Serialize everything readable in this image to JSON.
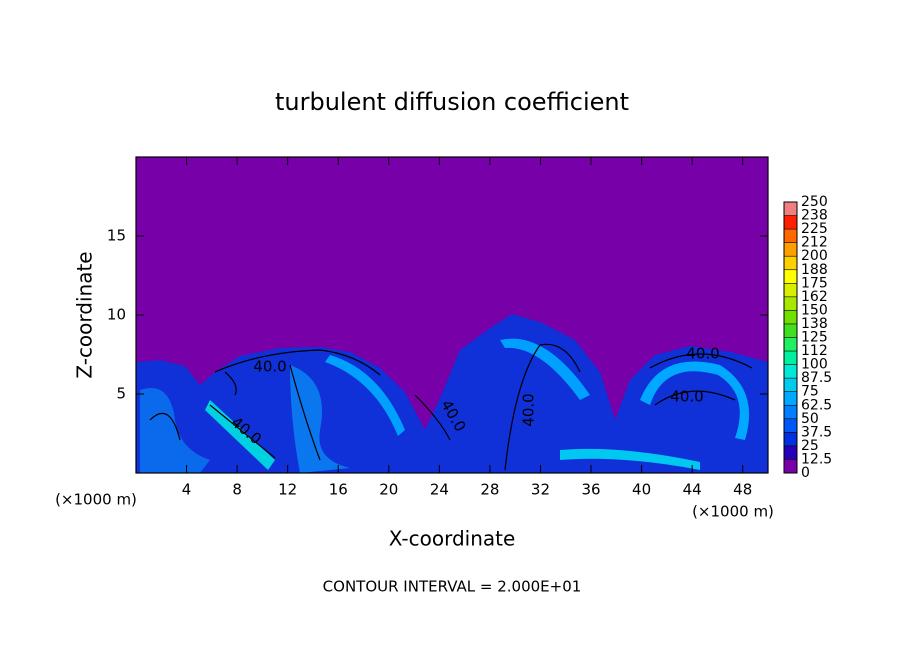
{
  "chart_data": {
    "type": "contour",
    "title": "turbulent diffusion coefficient",
    "xlabel": "X-coordinate",
    "ylabel": "Z-coordinate",
    "x_unit_labels": [
      "(×1000 m)",
      "(×1000 m)"
    ],
    "footnote": "CONTOUR INTERVAL = 2.000E+01",
    "contour_labels": [
      "40.0",
      "40.0",
      "40.0",
      "40.0",
      "40.0",
      "40.0"
    ],
    "xlim": [
      0,
      50
    ],
    "xticks": [
      4,
      8,
      12,
      16,
      20,
      24,
      28,
      32,
      36,
      40,
      44,
      48
    ],
    "ylim": [
      0,
      20
    ],
    "yticks": [
      5,
      10,
      15
    ],
    "colorbar": {
      "lim": [
        0,
        250
      ],
      "ticks": [
        0,
        12.5,
        25,
        37.5,
        50,
        62.5,
        75,
        87.5,
        100,
        {
          "value": 112.5,
          "label": "112"
        },
        125,
        {
          "value": 137.5,
          "label": "138"
        },
        150,
        {
          "value": 162.5,
          "label": "162"
        },
        175,
        {
          "value": 187.5,
          "label": "188"
        },
        200,
        {
          "value": 212.5,
          "label": "212"
        },
        225,
        {
          "value": 237.5,
          "label": "238"
        },
        250
      ],
      "colors": [
        "#7800a8",
        "#2400b8",
        "#0030e0",
        "#0058f8",
        "#0080ff",
        "#00a8ff",
        "#00ccf0",
        "#00e8d8",
        "#00f0a0",
        "#20f060",
        "#40e020",
        "#70e000",
        "#a8e800",
        "#d8f000",
        "#ffff00",
        "#ffd000",
        "#ffa000",
        "#ff6800",
        "#ff2000",
        "#f08080"
      ]
    }
  }
}
